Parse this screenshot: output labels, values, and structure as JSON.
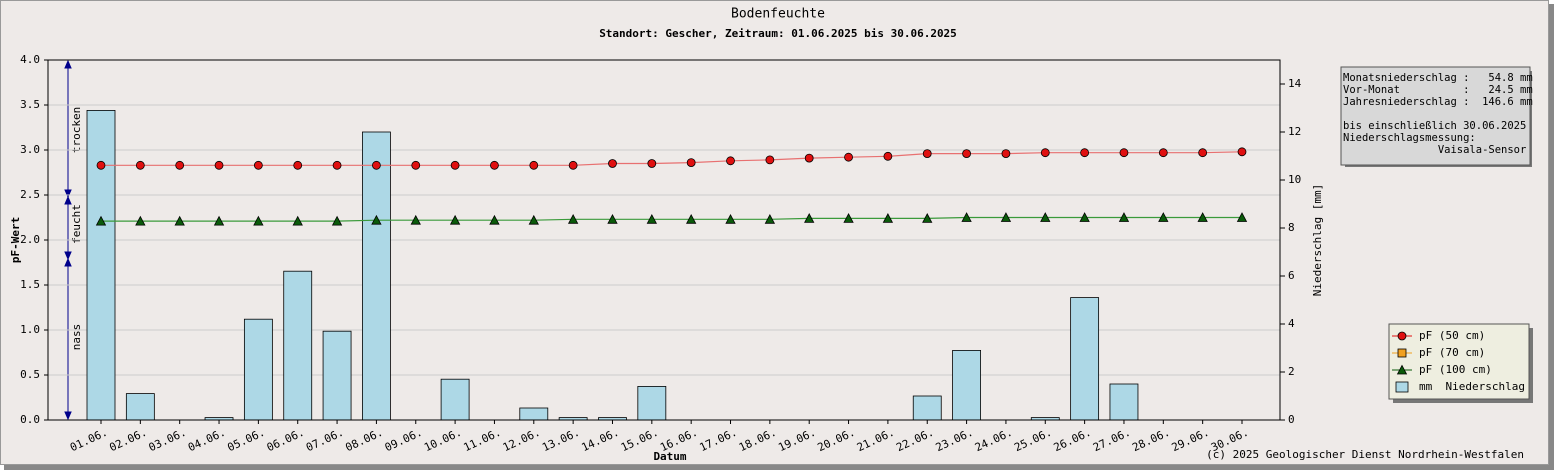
{
  "chart_data": {
    "type": "bar_line",
    "title": "Bodenfeuchte",
    "subtitle": "Standort: Gescher, Zeitraum: 01.06.2025 bis 30.06.2025",
    "xlabel": "Datum",
    "ylabel": "pF-Wert",
    "y2label": "Niederschlag [mm]",
    "categories": [
      "01.06.",
      "02.06.",
      "03.06.",
      "04.06.",
      "05.06.",
      "06.06.",
      "07.06.",
      "08.06.",
      "09.06.",
      "10.06.",
      "11.06.",
      "12.06.",
      "13.06.",
      "14.06.",
      "15.06.",
      "16.06.",
      "17.06.",
      "18.06.",
      "19.06.",
      "20.06.",
      "21.06.",
      "22.06.",
      "23.06.",
      "24.06.",
      "25.06.",
      "26.06.",
      "27.06.",
      "28.06.",
      "29.06.",
      "30.06."
    ],
    "series": [
      {
        "name": "pF (50 cm)",
        "type": "line",
        "marker": "circle",
        "color": "#e01010",
        "line_color": "#e87070",
        "values": [
          2.83,
          2.83,
          2.83,
          2.83,
          2.83,
          2.83,
          2.83,
          2.83,
          2.83,
          2.83,
          2.83,
          2.83,
          2.83,
          2.85,
          2.85,
          2.86,
          2.88,
          2.89,
          2.91,
          2.92,
          2.93,
          2.96,
          2.96,
          2.96,
          2.97,
          2.97,
          2.97,
          2.97,
          2.97,
          2.98
        ]
      },
      {
        "name": "pF (70 cm)",
        "type": "line",
        "marker": "square",
        "color": "#f0a020",
        "line_color": "#f0c070",
        "values": [
          null,
          null,
          null,
          null,
          null,
          null,
          null,
          null,
          null,
          null,
          null,
          null,
          null,
          null,
          null,
          null,
          null,
          null,
          null,
          null,
          null,
          null,
          null,
          null,
          null,
          null,
          null,
          null,
          null,
          null
        ]
      },
      {
        "name": "pF (100 cm)",
        "type": "line",
        "marker": "triangle",
        "color": "#0a5a0a",
        "line_color": "#3a9a3a",
        "values": [
          2.21,
          2.21,
          2.21,
          2.21,
          2.21,
          2.21,
          2.21,
          2.22,
          2.22,
          2.22,
          2.22,
          2.22,
          2.23,
          2.23,
          2.23,
          2.23,
          2.23,
          2.23,
          2.24,
          2.24,
          2.24,
          2.24,
          2.25,
          2.25,
          2.25,
          2.25,
          2.25,
          2.25,
          2.25,
          2.25
        ]
      },
      {
        "name": "mm  Niederschlag",
        "type": "bar",
        "axis": "y2",
        "color": "#add8e6",
        "values": [
          12.9,
          1.1,
          0,
          0.1,
          4.2,
          6.2,
          3.7,
          12.0,
          0,
          1.7,
          0,
          0.5,
          0.1,
          0.1,
          1.4,
          0,
          0,
          0,
          0,
          0,
          0,
          1.0,
          2.9,
          0,
          0.1,
          5.1,
          1.5,
          0,
          0,
          0
        ]
      }
    ],
    "ylim": [
      0,
      4
    ],
    "yticks": [
      {
        "value": 0,
        "label": "0.0"
      },
      0.5,
      {
        "value": 1,
        "label": "1.0"
      },
      1.5,
      {
        "value": 2,
        "label": "2.0"
      },
      2.5,
      {
        "value": 3,
        "label": "3.0"
      },
      3.5,
      {
        "value": 4,
        "label": "4.0"
      }
    ],
    "y2lim": [
      0,
      15
    ],
    "y2ticks": [
      0,
      2,
      4,
      6,
      8,
      10,
      12,
      14
    ],
    "grid": true,
    "legend": "lower right",
    "zones": [
      "trocken",
      "feucht",
      "nass"
    ],
    "info": [
      "Monatsniederschlag :   54.8 mm",
      "Vor-Monat          :   24.5 mm",
      "Jahresniederschlag :  146.6 mm",
      "",
      "bis einschließlich 30.06.2025",
      "Niederschlagsmessung:",
      "               Vaisala-Sensor"
    ],
    "footer": "(c) 2025 Geologischer Dienst Nordrhein-Westfalen"
  }
}
